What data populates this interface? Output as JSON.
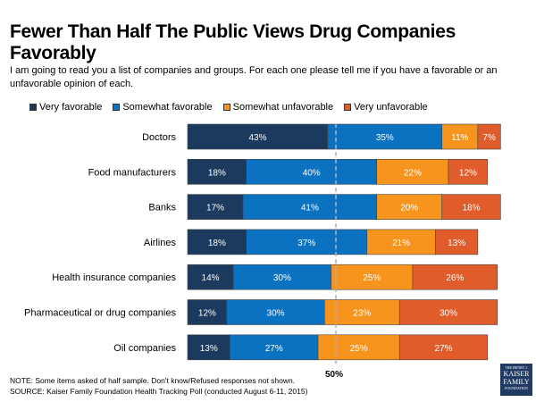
{
  "chart_data": {
    "type": "bar",
    "orientation": "horizontal",
    "stacked": true,
    "title": "Fewer Than Half The Public Views Drug Companies Favorably",
    "subtitle": "I am going to read you a list of companies and groups.  For each one please tell me if you have a favorable or an unfavorable opinion of each.",
    "categories": [
      "Doctors",
      "Food manufacturers",
      "Banks",
      "Airlines",
      "Health insurance companies",
      "Pharmaceutical or drug companies",
      "Oil companies"
    ],
    "series": [
      {
        "name": "Very favorable",
        "color": "#1b3a5e",
        "values": [
          43,
          18,
          17,
          18,
          14,
          12,
          13
        ]
      },
      {
        "name": "Somewhat favorable",
        "color": "#0b71c1",
        "values": [
          35,
          40,
          41,
          37,
          30,
          30,
          27
        ]
      },
      {
        "name": "Somewhat unfavorable",
        "color": "#f7941e",
        "values": [
          11,
          22,
          20,
          21,
          25,
          23,
          25
        ]
      },
      {
        "name": "Very unfavorable",
        "color": "#e05c2b",
        "values": [
          7,
          12,
          18,
          13,
          26,
          30,
          27
        ]
      }
    ],
    "reference_line": {
      "value": 50,
      "label": "50%",
      "style": "dashed"
    },
    "legend_position": "top",
    "data_label_suffix": "%",
    "grid": false
  },
  "footer": {
    "note": "NOTE: Some items asked of half sample. Don't know/Refused responses not shown.",
    "source": "SOURCE: Kaiser Family Foundation Health Tracking Poll (conducted August 6-11, 2015)"
  },
  "logo": {
    "line1": "THE HENRY J.",
    "line2": "KAISER",
    "line3": "FAMILY",
    "line4": "FOUNDATION"
  }
}
